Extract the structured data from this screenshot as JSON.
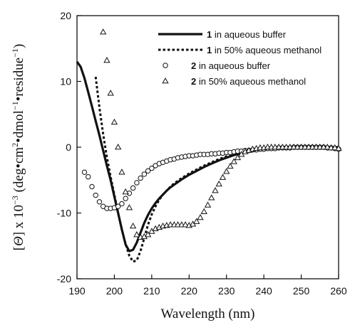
{
  "chart_data": {
    "type": "line",
    "xlabel": "Wavelength (nm)",
    "ylabel_parts": {
      "open": "[",
      "theta": "Θ",
      "close": "] x 10",
      "exp1": "−3",
      "units_a": " (deg•cm",
      "exp2": "2",
      "units_b": "•dmol",
      "exp3": "−1",
      "units_c": "•residue",
      "exp4": "−1",
      "units_d": ")"
    },
    "xlim": [
      190,
      260
    ],
    "ylim": [
      -20,
      20
    ],
    "x_ticks": [
      190,
      200,
      210,
      220,
      230,
      240,
      250,
      260
    ],
    "x_tick_labels": [
      "190",
      "200",
      "210",
      "220",
      "230",
      "240",
      "250",
      "260"
    ],
    "y_ticks": [
      -20,
      -10,
      0,
      10,
      20
    ],
    "y_tick_labels": [
      "-20",
      "-10",
      "0",
      "10",
      "20"
    ],
    "legend_position": "top-right",
    "series": [
      {
        "name_num": "1",
        "name_text": " in aqueous buffer",
        "style": "solid",
        "points": [
          [
            190,
            13
          ],
          [
            191,
            12.2
          ],
          [
            192,
            10.5
          ],
          [
            193,
            8.4
          ],
          [
            194,
            6.2
          ],
          [
            195,
            4
          ],
          [
            196,
            1.8
          ],
          [
            197,
            -0.5
          ],
          [
            198,
            -2.8
          ],
          [
            199,
            -5
          ],
          [
            200,
            -7.5
          ],
          [
            201,
            -10
          ],
          [
            202,
            -12.5
          ],
          [
            203,
            -14.8
          ],
          [
            204,
            -15.8
          ],
          [
            205,
            -15.6
          ],
          [
            206,
            -14.5
          ],
          [
            207,
            -13
          ],
          [
            208,
            -11.5
          ],
          [
            209,
            -10.3
          ],
          [
            210,
            -9.3
          ],
          [
            211,
            -8.5
          ],
          [
            212,
            -7.8
          ],
          [
            213,
            -7.2
          ],
          [
            214,
            -6.6
          ],
          [
            215,
            -6.1
          ],
          [
            216,
            -5.7
          ],
          [
            217,
            -5.3
          ],
          [
            218,
            -4.9
          ],
          [
            220,
            -4.2
          ],
          [
            222,
            -3.6
          ],
          [
            224,
            -3
          ],
          [
            226,
            -2.5
          ],
          [
            228,
            -2
          ],
          [
            230,
            -1.6
          ],
          [
            232,
            -1.2
          ],
          [
            234,
            -0.9
          ],
          [
            236,
            -0.6
          ],
          [
            238,
            -0.4
          ],
          [
            240,
            -0.2
          ],
          [
            243,
            -0.1
          ],
          [
            246,
            0
          ],
          [
            250,
            0
          ],
          [
            255,
            0
          ],
          [
            260,
            0
          ]
        ]
      },
      {
        "name_num": "1",
        "name_text": " in 50% aqueous methanol",
        "style": "dashed",
        "points": [
          [
            195,
            10.7
          ],
          [
            196,
            6
          ],
          [
            197,
            2
          ],
          [
            198,
            -1.5
          ],
          [
            199,
            -4.5
          ],
          [
            200,
            -7.2
          ],
          [
            201,
            -10
          ],
          [
            202,
            -12.5
          ],
          [
            203,
            -14.7
          ],
          [
            204,
            -16.5
          ],
          [
            205,
            -17.4
          ],
          [
            206,
            -17.2
          ],
          [
            207,
            -15.8
          ],
          [
            208,
            -13.8
          ],
          [
            209,
            -11.8
          ],
          [
            210,
            -10.2
          ],
          [
            211,
            -9
          ],
          [
            212,
            -8
          ],
          [
            213,
            -7.2
          ],
          [
            214,
            -6.6
          ],
          [
            215,
            -6
          ],
          [
            216,
            -5.5
          ],
          [
            218,
            -4.7
          ],
          [
            220,
            -4
          ],
          [
            222,
            -3.4
          ],
          [
            224,
            -2.8
          ],
          [
            226,
            -2.3
          ],
          [
            228,
            -1.8
          ],
          [
            230,
            -1.4
          ],
          [
            232,
            -1.1
          ],
          [
            234,
            -0.8
          ],
          [
            236,
            -0.5
          ],
          [
            238,
            -0.3
          ],
          [
            240,
            -0.2
          ],
          [
            243,
            -0.1
          ],
          [
            246,
            0
          ],
          [
            250,
            0
          ],
          [
            255,
            0
          ],
          [
            260,
            0
          ]
        ]
      },
      {
        "name_num": "2",
        "name_text": " in aqueous buffer",
        "style": "circle",
        "points": [
          [
            192,
            -3.8
          ],
          [
            193,
            -4.5
          ],
          [
            194,
            -6
          ],
          [
            195,
            -7.3
          ],
          [
            196,
            -8.3
          ],
          [
            197,
            -9
          ],
          [
            198,
            -9.3
          ],
          [
            199,
            -9.3
          ],
          [
            200,
            -9.2
          ],
          [
            201,
            -9
          ],
          [
            202,
            -8.6
          ],
          [
            203,
            -7.8
          ],
          [
            204,
            -7
          ],
          [
            205,
            -6.2
          ],
          [
            206,
            -5.4
          ],
          [
            207,
            -4.7
          ],
          [
            208,
            -4.1
          ],
          [
            209,
            -3.6
          ],
          [
            210,
            -3.2
          ],
          [
            211,
            -2.8
          ],
          [
            212,
            -2.5
          ],
          [
            213,
            -2.3
          ],
          [
            214,
            -2.1
          ],
          [
            215,
            -1.9
          ],
          [
            216,
            -1.8
          ],
          [
            217,
            -1.6
          ],
          [
            218,
            -1.5
          ],
          [
            219,
            -1.4
          ],
          [
            220,
            -1.3
          ],
          [
            221,
            -1.3
          ],
          [
            222,
            -1.2
          ],
          [
            223,
            -1.1
          ],
          [
            224,
            -1.1
          ],
          [
            225,
            -1.1
          ],
          [
            226,
            -1
          ],
          [
            227,
            -1
          ],
          [
            228,
            -0.9
          ],
          [
            229,
            -0.9
          ],
          [
            230,
            -0.8
          ],
          [
            231,
            -0.8
          ],
          [
            232,
            -0.7
          ],
          [
            233,
            -0.6
          ],
          [
            234,
            -0.6
          ],
          [
            235,
            -0.5
          ],
          [
            236,
            -0.5
          ],
          [
            237,
            -0.4
          ],
          [
            238,
            -0.4
          ],
          [
            239,
            -0.3
          ],
          [
            240,
            -0.3
          ],
          [
            241,
            -0.2
          ],
          [
            242,
            -0.2
          ],
          [
            243,
            -0.2
          ],
          [
            244,
            -0.1
          ],
          [
            245,
            -0.1
          ],
          [
            246,
            -0.1
          ],
          [
            247,
            -0.1
          ],
          [
            248,
            0
          ],
          [
            249,
            0
          ],
          [
            250,
            0
          ],
          [
            251,
            0
          ],
          [
            252,
            0
          ],
          [
            253,
            0
          ],
          [
            254,
            0
          ],
          [
            255,
            0
          ],
          [
            256,
            0
          ],
          [
            257,
            -0.1
          ],
          [
            258,
            -0.1
          ],
          [
            259,
            -0.2
          ],
          [
            260,
            -0.3
          ]
        ]
      },
      {
        "name_num": "2",
        "name_text": " in 50% aqueous methanol",
        "style": "triangle",
        "points": [
          [
            197,
            17.5
          ],
          [
            198,
            13.2
          ],
          [
            199,
            8.2
          ],
          [
            200,
            3.8
          ],
          [
            201,
            0
          ],
          [
            202,
            -3.8
          ],
          [
            203,
            -6.8
          ],
          [
            204,
            -9.2
          ],
          [
            205,
            -12
          ],
          [
            206,
            -13.3
          ],
          [
            207,
            -13.7
          ],
          [
            208,
            -13.6
          ],
          [
            209,
            -13.3
          ],
          [
            210,
            -12.8
          ],
          [
            211,
            -12.4
          ],
          [
            212,
            -12.2
          ],
          [
            213,
            -12
          ],
          [
            214,
            -11.9
          ],
          [
            215,
            -11.8
          ],
          [
            216,
            -11.8
          ],
          [
            217,
            -11.8
          ],
          [
            218,
            -11.8
          ],
          [
            219,
            -11.8
          ],
          [
            220,
            -11.9
          ],
          [
            221,
            -11.7
          ],
          [
            222,
            -11.3
          ],
          [
            223,
            -10.7
          ],
          [
            224,
            -9.8
          ],
          [
            225,
            -8.8
          ],
          [
            226,
            -7.7
          ],
          [
            227,
            -6.6
          ],
          [
            228,
            -5.6
          ],
          [
            229,
            -4.6
          ],
          [
            230,
            -3.7
          ],
          [
            231,
            -2.9
          ],
          [
            232,
            -2.2
          ],
          [
            233,
            -1.6
          ],
          [
            234,
            -1.1
          ],
          [
            235,
            -0.7
          ],
          [
            236,
            -0.5
          ],
          [
            237,
            -0.3
          ],
          [
            238,
            -0.2
          ],
          [
            239,
            -0.1
          ],
          [
            240,
            -0.1
          ],
          [
            241,
            0
          ],
          [
            242,
            0
          ],
          [
            243,
            0
          ],
          [
            244,
            0
          ],
          [
            245,
            0
          ],
          [
            246,
            0
          ],
          [
            247,
            0
          ],
          [
            248,
            0
          ],
          [
            249,
            0
          ],
          [
            250,
            0
          ],
          [
            251,
            0
          ],
          [
            252,
            0
          ],
          [
            253,
            0
          ],
          [
            254,
            0
          ],
          [
            255,
            0
          ],
          [
            256,
            0
          ],
          [
            257,
            0
          ],
          [
            258,
            -0.1
          ],
          [
            259,
            -0.1
          ],
          [
            260,
            -0.2
          ]
        ]
      }
    ]
  }
}
